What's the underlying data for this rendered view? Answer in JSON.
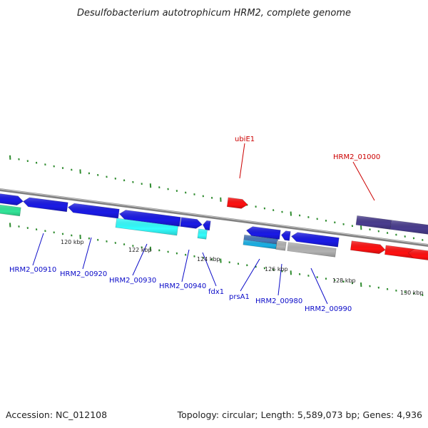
{
  "title": "Desulfobacterium autotrophicum HRM2, complete genome",
  "footer": {
    "accession": "Accession: NC_012108",
    "summary": "Topology: circular; Length: 5,589,073 bp; Genes: 4,936"
  },
  "colors": {
    "backbone": "#808080",
    "tick": "#2e8b2e",
    "blue": "#1a1ae6",
    "cyan": "#33ffff",
    "teal": "#33e699",
    "red": "#ff1111",
    "purple": "#4a3d8f",
    "gray": "#b3b3b3",
    "steel": "#4a78b8",
    "sky": "#1ab0e6",
    "label_blue": "#0a0ac8",
    "label_red": "#cc0000"
  },
  "scale_labels": [
    "120 kbp",
    "122 kbp",
    "124 kbp",
    "126 kbp",
    "128 kbp",
    "130 kbp"
  ],
  "gene_labels": [
    {
      "text": "HRM2_00910",
      "color": "label_blue"
    },
    {
      "text": "HRM2_00920",
      "color": "label_blue"
    },
    {
      "text": "HRM2_00930",
      "color": "label_blue"
    },
    {
      "text": "HRM2_00940",
      "color": "label_blue"
    },
    {
      "text": "fdx1",
      "color": "label_blue"
    },
    {
      "text": "prsA1",
      "color": "label_blue"
    },
    {
      "text": "HRM2_00980",
      "color": "label_blue"
    },
    {
      "text": "HRM2_00990",
      "color": "label_blue"
    },
    {
      "text": "ubiE1",
      "color": "label_red"
    },
    {
      "text": "HRM2_01000",
      "color": "label_red"
    }
  ]
}
